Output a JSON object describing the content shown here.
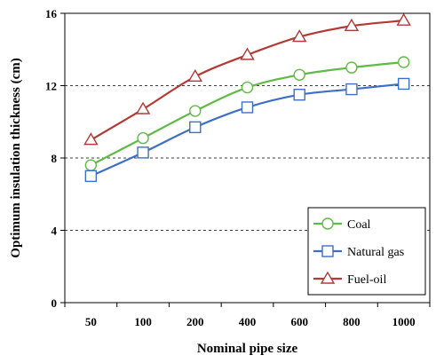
{
  "chart_data": {
    "type": "line",
    "categories": [
      "50",
      "100",
      "200",
      "400",
      "600",
      "800",
      "1000"
    ],
    "xlabel": "Nominal pipe size",
    "ylabel": "Optimum insulation thickness (cm)",
    "ylim": [
      0,
      16
    ],
    "yticks": [
      "0",
      "4",
      "8",
      "12",
      "16"
    ],
    "grid": "horizontal dashed at 4, 8, 12",
    "legend_position": "bottom-right",
    "series": [
      {
        "name": "Coal",
        "marker": "circle",
        "color": "#5fba46",
        "values": [
          7.6,
          9.1,
          10.6,
          11.9,
          12.6,
          13.0,
          13.3
        ]
      },
      {
        "name": "Natural gas",
        "marker": "square",
        "color": "#3f6fc4",
        "values": [
          7.0,
          8.3,
          9.7,
          10.8,
          11.5,
          11.8,
          12.1
        ]
      },
      {
        "name": "Fuel-oil",
        "marker": "triangle",
        "color": "#b23a36",
        "values": [
          9.0,
          10.7,
          12.5,
          13.7,
          14.7,
          15.3,
          15.6
        ]
      }
    ]
  }
}
